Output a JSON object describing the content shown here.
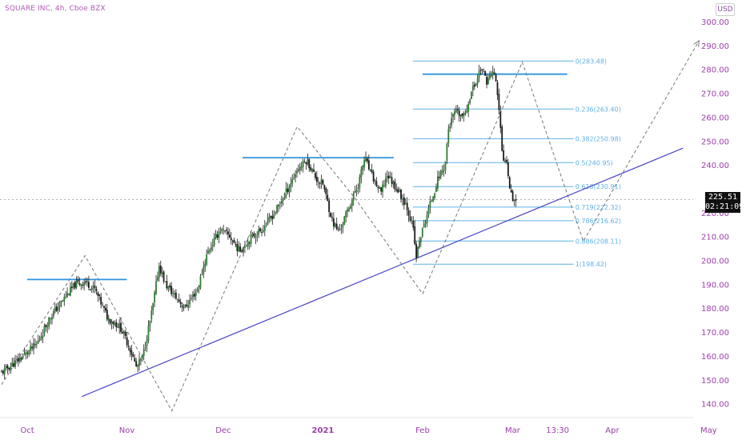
{
  "header": {
    "symbol_line": "SQUARE INC, 4h, Cboe BZX",
    "currency": "USD"
  },
  "last_price": {
    "price": "225.51",
    "countdown": "02:21:09"
  },
  "colors": {
    "axis_text": "#9b3ea8",
    "candle": "#1a1a1a",
    "candle_up": "#2e7d32",
    "fib": "#5cb0e6",
    "trend": "#4a47c8",
    "resistance": "#2f95dd",
    "projection": "#777777"
  },
  "chart_data": {
    "type": "candlestick",
    "title": "SQUARE INC, 4h, Cboe BZX",
    "ylim": [
      135,
      305
    ],
    "y_ticks": [
      {
        "v": 300,
        "label": "300.00"
      },
      {
        "v": 290,
        "label": "290.00"
      },
      {
        "v": 280,
        "label": "280.00"
      },
      {
        "v": 270,
        "label": "270.00"
      },
      {
        "v": 260,
        "label": "260.00"
      },
      {
        "v": 250,
        "label": "250.00"
      },
      {
        "v": 240,
        "label": "240.00"
      },
      {
        "v": 220,
        "label": "220.00"
      },
      {
        "v": 210,
        "label": "210.00"
      },
      {
        "v": 200,
        "label": "200.00"
      },
      {
        "v": 190,
        "label": "190.00"
      },
      {
        "v": 180,
        "label": "180.00"
      },
      {
        "v": 170,
        "label": "170.00"
      },
      {
        "v": 160,
        "label": "160.00"
      },
      {
        "v": 150,
        "label": "150.00"
      },
      {
        "v": 140,
        "label": "140.00"
      }
    ],
    "x_ticks": [
      {
        "date": "2020-10-01",
        "label": "Oct",
        "bold": false
      },
      {
        "date": "2020-11-01",
        "label": "Nov",
        "bold": false
      },
      {
        "date": "2020-12-01",
        "label": "Dec",
        "bold": false
      },
      {
        "date": "2021-01-01",
        "label": "2021",
        "bold": true
      },
      {
        "date": "2021-02-01",
        "label": "Feb",
        "bold": false
      },
      {
        "date": "2021-03-01",
        "label": "Mar",
        "bold": false
      },
      {
        "date": "2021-03-15",
        "label": "13:30",
        "bold": false
      },
      {
        "date": "2021-04-01",
        "label": "Apr",
        "bold": false
      },
      {
        "date": "2021-05-01",
        "label": "May",
        "bold": false
      }
    ],
    "price_path": [
      {
        "date": "2020-09-23",
        "value": 153
      },
      {
        "date": "2020-09-28",
        "value": 158
      },
      {
        "date": "2020-10-04",
        "value": 165
      },
      {
        "date": "2020-10-08",
        "value": 176
      },
      {
        "date": "2020-10-13",
        "value": 185
      },
      {
        "date": "2020-10-16",
        "value": 190
      },
      {
        "date": "2020-10-19",
        "value": 191
      },
      {
        "date": "2020-10-22",
        "value": 188
      },
      {
        "date": "2020-10-26",
        "value": 176
      },
      {
        "date": "2020-10-30",
        "value": 172
      },
      {
        "date": "2020-11-02",
        "value": 163
      },
      {
        "date": "2020-11-04",
        "value": 155
      },
      {
        "date": "2020-11-06",
        "value": 160
      },
      {
        "date": "2020-11-09",
        "value": 180
      },
      {
        "date": "2020-11-11",
        "value": 198
      },
      {
        "date": "2020-11-13",
        "value": 190
      },
      {
        "date": "2020-11-16",
        "value": 185
      },
      {
        "date": "2020-11-19",
        "value": 180
      },
      {
        "date": "2020-11-23",
        "value": 188
      },
      {
        "date": "2020-11-26",
        "value": 203
      },
      {
        "date": "2020-11-30",
        "value": 213
      },
      {
        "date": "2020-12-03",
        "value": 210
      },
      {
        "date": "2020-12-06",
        "value": 204
      },
      {
        "date": "2020-12-10",
        "value": 210
      },
      {
        "date": "2020-12-13",
        "value": 213
      },
      {
        "date": "2020-12-17",
        "value": 220
      },
      {
        "date": "2020-12-21",
        "value": 230
      },
      {
        "date": "2020-12-24",
        "value": 238
      },
      {
        "date": "2020-12-27",
        "value": 242
      },
      {
        "date": "2020-12-30",
        "value": 234
      },
      {
        "date": "2021-01-01",
        "value": 232
      },
      {
        "date": "2021-01-04",
        "value": 216
      },
      {
        "date": "2021-01-06",
        "value": 212
      },
      {
        "date": "2021-01-09",
        "value": 222
      },
      {
        "date": "2021-01-12",
        "value": 232
      },
      {
        "date": "2021-01-14",
        "value": 243
      },
      {
        "date": "2021-01-16",
        "value": 236
      },
      {
        "date": "2021-01-19",
        "value": 228
      },
      {
        "date": "2021-01-21",
        "value": 236
      },
      {
        "date": "2021-01-24",
        "value": 230
      },
      {
        "date": "2021-01-27",
        "value": 223
      },
      {
        "date": "2021-01-29",
        "value": 214
      },
      {
        "date": "2021-01-30",
        "value": 201
      },
      {
        "date": "2021-01-31",
        "value": 208
      },
      {
        "date": "2021-02-03",
        "value": 222
      },
      {
        "date": "2021-02-06",
        "value": 235
      },
      {
        "date": "2021-02-08",
        "value": 240
      },
      {
        "date": "2021-02-09",
        "value": 255
      },
      {
        "date": "2021-02-11",
        "value": 262
      },
      {
        "date": "2021-02-14",
        "value": 260
      },
      {
        "date": "2021-02-16",
        "value": 270
      },
      {
        "date": "2021-02-18",
        "value": 276
      },
      {
        "date": "2021-02-19",
        "value": 281
      },
      {
        "date": "2021-02-21",
        "value": 275
      },
      {
        "date": "2021-02-23",
        "value": 279
      },
      {
        "date": "2021-02-24",
        "value": 274
      },
      {
        "date": "2021-02-25",
        "value": 259
      },
      {
        "date": "2021-02-26",
        "value": 240
      },
      {
        "date": "2021-02-27",
        "value": 244
      },
      {
        "date": "2021-02-28",
        "value": 232
      },
      {
        "date": "2021-03-01",
        "value": 226
      },
      {
        "date": "2021-03-02",
        "value": 225.5
      }
    ],
    "fibonacci": [
      {
        "level": "0",
        "price": 283.48,
        "label": "0(283.48)"
      },
      {
        "level": "0.236",
        "price": 263.4,
        "label": "0.236(263.40)"
      },
      {
        "level": "0.382",
        "price": 250.98,
        "label": "0.382(250.98)"
      },
      {
        "level": "0.5",
        "price": 240.95,
        "label": "0.5(240.95)"
      },
      {
        "level": "0.618",
        "price": 230.91,
        "label": "0.618(230.91)"
      },
      {
        "level": "0.719",
        "price": 222.32,
        "label": "0.719(222.32)"
      },
      {
        "level": "0.786",
        "price": 216.62,
        "label": "0.786(216.62)"
      },
      {
        "level": "0.886",
        "price": 208.11,
        "label": "0.886(208.11)"
      },
      {
        "level": "1",
        "price": 198.42,
        "label": "1(198.42)"
      }
    ],
    "fib_range": {
      "start": "2021-01-29",
      "end": "2021-03-20"
    },
    "trendline": [
      {
        "date": "2020-10-18",
        "value": 143
      },
      {
        "date": "2021-04-23",
        "value": 247
      }
    ],
    "resistance_lines": [
      {
        "start": "2020-10-01",
        "end": "2020-11-01",
        "value": 192
      },
      {
        "start": "2020-12-07",
        "end": "2021-01-23",
        "value": 243
      },
      {
        "start": "2021-02-01",
        "end": "2021-03-18",
        "value": 278
      }
    ],
    "projection_path": [
      {
        "date": "2020-09-23",
        "value": 148
      },
      {
        "date": "2020-10-19",
        "value": 202
      },
      {
        "date": "2020-11-15",
        "value": 137
      },
      {
        "date": "2020-12-24",
        "value": 256
      },
      {
        "date": "2021-01-11",
        "value": 226
      },
      {
        "date": "2021-02-01",
        "value": 186
      },
      {
        "date": "2021-03-04",
        "value": 283
      },
      {
        "date": "2021-03-23",
        "value": 208
      },
      {
        "date": "2021-04-28",
        "value": 292
      }
    ],
    "current_price": 225.51
  }
}
